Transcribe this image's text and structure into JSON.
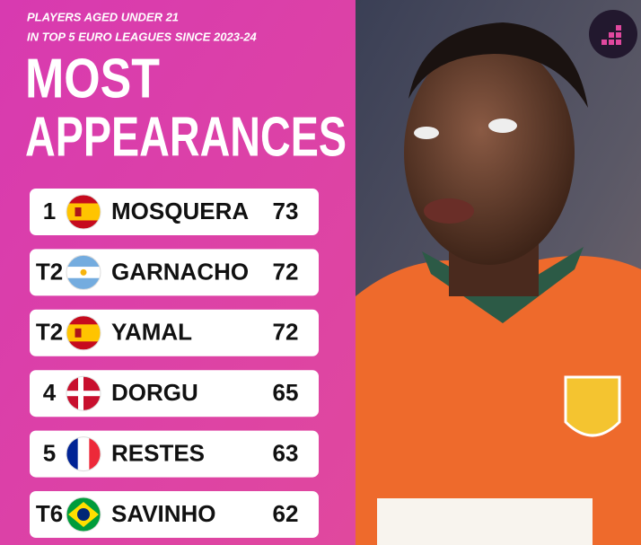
{
  "header": {
    "subtitle_lines": [
      "PLAYERS AGED UNDER 21",
      "IN TOP 5 EURO LEAGUES SINCE 2023-24"
    ],
    "title_lines": [
      "MOST",
      "APPEARANCES"
    ]
  },
  "rows": [
    {
      "rank": "1",
      "name": "MOSQUERA",
      "value": 73
    },
    {
      "rank": "T2",
      "name": "GARNACHO",
      "value": 72
    },
    {
      "rank": "T2",
      "name": "YAMAL",
      "value": 72
    },
    {
      "rank": "4",
      "name": "DORGU",
      "value": 65
    },
    {
      "rank": "5",
      "name": "RESTES",
      "value": 63
    },
    {
      "rank": "T6",
      "name": "SAVINHO",
      "value": 62
    }
  ]
}
